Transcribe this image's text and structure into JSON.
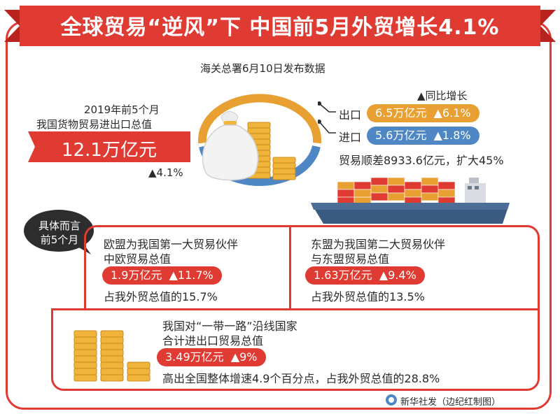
{
  "title": "全球贸易“逆风”下 中国前5月外贸增长4.1%",
  "source_note": "海关总署6月10日发布数据",
  "growth_legend": "▲同比增长",
  "total": {
    "label_line1": "2019年前5个月",
    "label_line2": "我国货物贸易进出口总值",
    "value": "12.1万亿元",
    "growth": "▲4.1%"
  },
  "export": {
    "label": "出口",
    "value": "6.5万亿元",
    "growth": "▲6.1%"
  },
  "import": {
    "label": "进口",
    "value": "5.6万亿元",
    "growth": "▲1.8%"
  },
  "surplus": "贸易顺差8933.6亿元，扩大45%",
  "detail_tag_line1": "具体而言",
  "detail_tag_line2": "前5个月",
  "eu": {
    "line1": "欧盟为我国第一大贸易伙伴",
    "line2": "中欧贸易总值",
    "value": "1.9万亿元",
    "growth": "▲11.7%",
    "share": "占我外贸总值的15.7%"
  },
  "asean": {
    "line1": "东盟为我国第二大贸易伙伴",
    "line2": "与东盟贸易总值",
    "value": "1.63万亿元",
    "growth": "▲9.4%",
    "share": "占我外贸总值的13.5%"
  },
  "bri": {
    "line1": "我国对“一带一路”沿线国家",
    "line2": "合计进出口贸易总值",
    "value": "3.49万亿元",
    "growth": "▲9%",
    "note": "高出全国整体增速4.9个百分点，占我外贸总值的28.8%"
  },
  "credit": "新华社发（边纪红制图）",
  "colors": {
    "brand_red": "#e03b32",
    "export_orange": "#e9a032",
    "import_blue": "#4f87c4",
    "gold": "#f0b43a"
  },
  "chart_data": {
    "type": "pie",
    "title": "",
    "categories": [
      "出口",
      "进口"
    ],
    "values": [
      6.5,
      5.6
    ],
    "unit": "万亿元",
    "growth_pct": [
      6.1,
      1.8
    ],
    "total": 12.1,
    "total_growth_pct": 4.1
  }
}
